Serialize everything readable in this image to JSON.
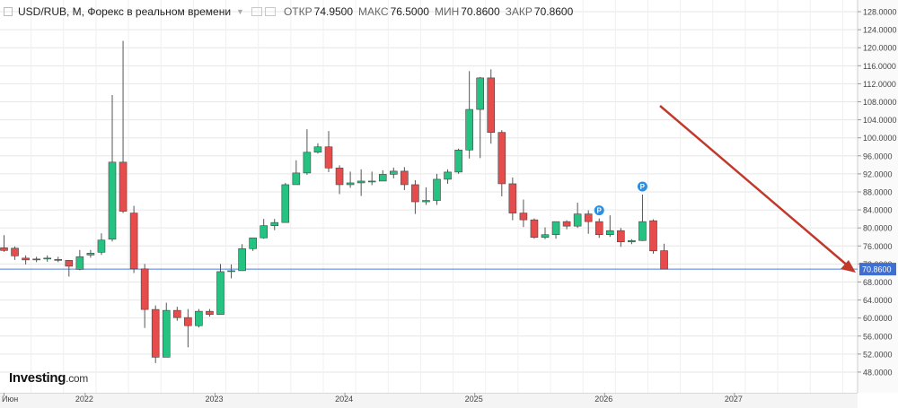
{
  "header": {
    "instrument": "USD/RUB, М, Форекс в реальном времени",
    "open_label": "ОТКР",
    "open_value": "74.9500",
    "high_label": "МАКС",
    "high_value": "76.5000",
    "low_label": "МИН",
    "low_value": "70.8600",
    "close_label": "ЗАКР",
    "close_value": "70.8600"
  },
  "logo": {
    "main": "Investing",
    "suffix": ".com"
  },
  "colors": {
    "up": "#26c281",
    "down": "#e74c4c",
    "wick": "#555555",
    "grid": "#e6e6e6",
    "price_line": "#4f7fd6",
    "price_tag": "#3f6fd0",
    "arrow": "#c0392b",
    "marker": "#2e8fe0"
  },
  "chart_data": {
    "type": "candlestick",
    "timeframe": "monthly",
    "ylim": [
      46,
      129
    ],
    "y_ticks": [
      "128.0000",
      "124.0000",
      "120.0000",
      "116.0000",
      "112.0000",
      "108.0000",
      "104.0000",
      "100.0000",
      "96.0000",
      "92.0000",
      "88.0000",
      "84.0000",
      "80.0000",
      "76.0000",
      "72.0000",
      "68.0000",
      "64.0000",
      "60.0000",
      "56.0000",
      "52.0000",
      "48.0000"
    ],
    "y_tick_values": [
      128,
      124,
      120,
      116,
      112,
      108,
      104,
      100,
      96,
      92,
      88,
      84,
      80,
      76,
      72,
      68,
      64,
      60,
      56,
      52,
      48
    ],
    "x_labels": [
      {
        "text": "Июн",
        "index": 0
      },
      {
        "text": "2022",
        "index": 7.5
      },
      {
        "text": "2023",
        "index": 19.5
      },
      {
        "text": "2024",
        "index": 31.5
      },
      {
        "text": "2025",
        "index": 43.5
      },
      {
        "text": "2026",
        "index": 55.5
      },
      {
        "text": "2027",
        "index": 67.5
      }
    ],
    "current_price": 70.86,
    "current_price_label": "70.8600",
    "candles": [
      {
        "o": 75.6,
        "h": 78.4,
        "l": 74.7,
        "c": 75.0
      },
      {
        "o": 75.5,
        "h": 75.9,
        "l": 72.9,
        "c": 73.8
      },
      {
        "o": 73.3,
        "h": 73.9,
        "l": 71.9,
        "c": 72.9
      },
      {
        "o": 73.1,
        "h": 73.6,
        "l": 72.4,
        "c": 73.0
      },
      {
        "o": 73.3,
        "h": 73.9,
        "l": 72.5,
        "c": 73.3
      },
      {
        "o": 73.0,
        "h": 73.6,
        "l": 72.4,
        "c": 72.8
      },
      {
        "o": 72.8,
        "h": 72.9,
        "l": 69.2,
        "c": 71.5
      },
      {
        "o": 70.8,
        "h": 75.1,
        "l": 70.6,
        "c": 73.6
      },
      {
        "o": 74.0,
        "h": 75.1,
        "l": 73.4,
        "c": 74.4
      },
      {
        "o": 74.6,
        "h": 78.8,
        "l": 74.0,
        "c": 77.3
      },
      {
        "o": 77.5,
        "h": 109.5,
        "l": 77.0,
        "c": 94.6
      },
      {
        "o": 94.6,
        "h": 121.5,
        "l": 83.3,
        "c": 83.7
      },
      {
        "o": 83.3,
        "h": 84.9,
        "l": 70.0,
        "c": 70.9
      },
      {
        "o": 70.9,
        "h": 72.0,
        "l": 57.8,
        "c": 61.9
      },
      {
        "o": 61.9,
        "h": 62.8,
        "l": 50.0,
        "c": 51.3
      },
      {
        "o": 51.3,
        "h": 63.4,
        "l": 51.3,
        "c": 61.7
      },
      {
        "o": 61.7,
        "h": 62.5,
        "l": 59.4,
        "c": 60.1
      },
      {
        "o": 60.1,
        "h": 62.0,
        "l": 53.5,
        "c": 58.3
      },
      {
        "o": 58.3,
        "h": 62.0,
        "l": 57.9,
        "c": 61.5
      },
      {
        "o": 61.5,
        "h": 62.0,
        "l": 60.3,
        "c": 60.8
      },
      {
        "o": 60.8,
        "h": 72.0,
        "l": 60.8,
        "c": 70.3
      },
      {
        "o": 70.3,
        "h": 71.9,
        "l": 68.8,
        "c": 70.5
      },
      {
        "o": 70.5,
        "h": 76.4,
        "l": 70.5,
        "c": 75.4
      },
      {
        "o": 75.4,
        "h": 77.5,
        "l": 74.9,
        "c": 77.8
      },
      {
        "o": 77.8,
        "h": 82.0,
        "l": 77.6,
        "c": 80.5
      },
      {
        "o": 80.5,
        "h": 82.0,
        "l": 79.5,
        "c": 81.2
      },
      {
        "o": 81.2,
        "h": 90.0,
        "l": 81.2,
        "c": 89.6
      },
      {
        "o": 89.6,
        "h": 95.0,
        "l": 89.6,
        "c": 92.2
      },
      {
        "o": 92.2,
        "h": 101.9,
        "l": 91.8,
        "c": 96.8
      },
      {
        "o": 96.8,
        "h": 98.8,
        "l": 96.5,
        "c": 98.0
      },
      {
        "o": 98.0,
        "h": 101.5,
        "l": 92.4,
        "c": 93.3
      },
      {
        "o": 93.3,
        "h": 93.9,
        "l": 87.5,
        "c": 89.6
      },
      {
        "o": 89.6,
        "h": 92.5,
        "l": 88.9,
        "c": 90.0
      },
      {
        "o": 90.0,
        "h": 93.0,
        "l": 87.1,
        "c": 90.4
      },
      {
        "o": 90.4,
        "h": 92.5,
        "l": 89.5,
        "c": 90.4
      },
      {
        "o": 90.4,
        "h": 92.8,
        "l": 90.4,
        "c": 91.9
      },
      {
        "o": 91.9,
        "h": 93.4,
        "l": 91.0,
        "c": 92.6
      },
      {
        "o": 92.6,
        "h": 93.5,
        "l": 88.4,
        "c": 89.6
      },
      {
        "o": 89.6,
        "h": 90.6,
        "l": 83.1,
        "c": 85.8
      },
      {
        "o": 85.8,
        "h": 89.0,
        "l": 85.1,
        "c": 86.1
      },
      {
        "o": 86.1,
        "h": 92.0,
        "l": 85.1,
        "c": 90.8
      },
      {
        "o": 90.8,
        "h": 93.0,
        "l": 89.8,
        "c": 92.4
      },
      {
        "o": 92.4,
        "h": 97.6,
        "l": 92.0,
        "c": 97.3
      },
      {
        "o": 97.3,
        "h": 114.8,
        "l": 95.4,
        "c": 106.3
      },
      {
        "o": 106.3,
        "h": 113.5,
        "l": 95.5,
        "c": 113.3
      },
      {
        "o": 113.3,
        "h": 115.2,
        "l": 98.7,
        "c": 101.2
      },
      {
        "o": 101.2,
        "h": 101.7,
        "l": 87.0,
        "c": 89.8
      },
      {
        "o": 89.8,
        "h": 91.2,
        "l": 81.7,
        "c": 83.3
      },
      {
        "o": 83.3,
        "h": 86.3,
        "l": 80.2,
        "c": 81.8
      },
      {
        "o": 81.8,
        "h": 82.1,
        "l": 77.6,
        "c": 77.9
      },
      {
        "o": 77.9,
        "h": 80.1,
        "l": 77.5,
        "c": 78.5
      },
      {
        "o": 78.5,
        "h": 81.0,
        "l": 77.6,
        "c": 81.4
      },
      {
        "o": 81.4,
        "h": 81.7,
        "l": 79.7,
        "c": 80.4
      },
      {
        "o": 80.4,
        "h": 85.6,
        "l": 80.0,
        "c": 83.1
      },
      {
        "o": 83.1,
        "h": 83.9,
        "l": 78.7,
        "c": 81.4
      },
      {
        "o": 81.4,
        "h": 82.1,
        "l": 77.8,
        "c": 78.5
      },
      {
        "o": 78.5,
        "h": 82.8,
        "l": 78.0,
        "c": 79.4
      },
      {
        "o": 79.4,
        "h": 80.0,
        "l": 75.8,
        "c": 76.9
      },
      {
        "o": 76.9,
        "h": 77.5,
        "l": 76.4,
        "c": 77.2
      },
      {
        "o": 77.2,
        "h": 87.4,
        "l": 77.1,
        "c": 81.4
      },
      {
        "o": 81.6,
        "h": 81.9,
        "l": 74.3,
        "c": 74.9
      },
      {
        "o": 74.95,
        "h": 76.5,
        "l": 70.86,
        "c": 70.86
      }
    ],
    "markers": [
      {
        "index": 55,
        "label": "P"
      },
      {
        "index": 59,
        "label": "P"
      }
    ]
  }
}
